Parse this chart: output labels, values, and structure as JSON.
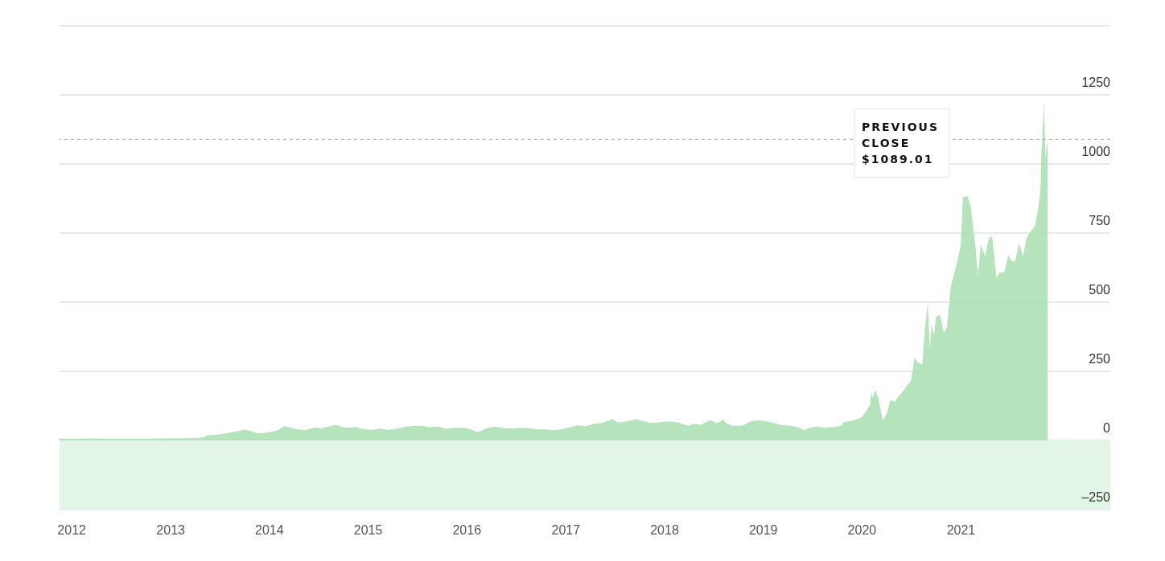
{
  "chart_data": {
    "type": "area",
    "x": [
      "2011-11-17",
      "2011-12-15",
      "2012-01-15",
      "2012-03-15",
      "2012-05-15",
      "2012-07-15",
      "2012-09-15",
      "2012-11-15",
      "2013-01-15",
      "2013-03-15",
      "2013-04-01",
      "2013-04-30",
      "2013-05-15",
      "2013-06-01",
      "2013-07-01",
      "2013-08-01",
      "2013-09-03",
      "2013-09-30",
      "2013-10-15",
      "2013-11-15",
      "2013-12-02",
      "2013-12-31",
      "2014-01-31",
      "2014-02-26",
      "2014-03-15",
      "2014-04-15",
      "2014-05-15",
      "2014-06-15",
      "2014-07-15",
      "2014-08-15",
      "2014-09-03",
      "2014-10-01",
      "2014-10-15",
      "2014-11-15",
      "2014-12-15",
      "2015-01-15",
      "2015-02-15",
      "2015-03-15",
      "2015-04-15",
      "2015-05-15",
      "2015-06-20",
      "2015-07-15",
      "2015-08-15",
      "2015-09-15",
      "2015-10-15",
      "2015-11-15",
      "2015-12-15",
      "2016-01-15",
      "2016-02-10",
      "2016-03-15",
      "2016-04-15",
      "2016-05-15",
      "2016-06-15",
      "2016-07-15",
      "2016-08-15",
      "2016-09-15",
      "2016-10-15",
      "2016-11-15",
      "2016-12-15",
      "2017-01-15",
      "2017-02-15",
      "2017-03-15",
      "2017-04-15",
      "2017-05-15",
      "2017-06-23",
      "2017-07-10",
      "2017-08-15",
      "2017-09-18",
      "2017-10-15",
      "2017-11-15",
      "2017-12-15",
      "2018-01-15",
      "2018-02-15",
      "2018-04-02",
      "2018-04-15",
      "2018-05-15",
      "2018-06-18",
      "2018-07-15",
      "2018-08-07",
      "2018-08-15",
      "2018-09-07",
      "2018-10-15",
      "2018-11-15",
      "2018-12-15",
      "2019-01-15",
      "2019-02-15",
      "2019-03-15",
      "2019-04-15",
      "2019-05-15",
      "2019-06-03",
      "2019-06-15",
      "2019-07-15",
      "2019-08-15",
      "2019-09-15",
      "2019-10-15",
      "2019-10-25",
      "2019-11-15",
      "2019-12-15",
      "2019-12-31",
      "2020-01-15",
      "2020-01-31",
      "2020-02-04",
      "2020-02-10",
      "2020-02-19",
      "2020-03-02",
      "2020-03-18",
      "2020-04-01",
      "2020-04-15",
      "2020-05-01",
      "2020-05-15",
      "2020-06-01",
      "2020-06-15",
      "2020-06-30",
      "2020-07-13",
      "2020-07-24",
      "2020-08-11",
      "2020-08-20",
      "2020-08-31",
      "2020-09-08",
      "2020-09-14",
      "2020-09-23",
      "2020-10-01",
      "2020-10-15",
      "2020-10-30",
      "2020-11-10",
      "2020-11-24",
      "2020-12-15",
      "2020-12-31",
      "2021-01-08",
      "2021-01-26",
      "2021-02-05",
      "2021-02-22",
      "2021-03-05",
      "2021-03-15",
      "2021-03-31",
      "2021-04-14",
      "2021-04-26",
      "2021-05-12",
      "2021-05-24",
      "2021-06-10",
      "2021-06-25",
      "2021-07-07",
      "2021-07-19",
      "2021-08-04",
      "2021-08-18",
      "2021-09-01",
      "2021-09-17",
      "2021-10-01",
      "2021-10-14",
      "2021-10-22",
      "2021-10-25",
      "2021-11-04",
      "2021-11-09",
      "2021-11-17"
    ],
    "values": [
      7,
      6,
      6,
      7,
      6,
      6,
      6,
      7,
      7,
      8,
      9,
      11,
      18,
      20,
      22,
      27,
      33,
      39,
      36,
      27,
      26,
      30,
      36,
      52,
      47,
      40,
      37,
      47,
      44,
      52,
      57,
      48,
      46,
      48,
      41,
      38,
      43,
      38,
      42,
      49,
      53,
      53,
      48,
      50,
      43,
      45,
      46,
      41,
      30,
      44,
      50,
      44,
      43,
      45,
      45,
      40,
      40,
      37,
      40,
      47,
      55,
      51,
      60,
      63,
      76,
      65,
      69,
      77,
      70,
      63,
      66,
      69,
      66,
      52,
      60,
      57,
      74,
      62,
      76,
      64,
      53,
      52,
      69,
      73,
      69,
      61,
      55,
      53,
      46,
      36,
      44,
      50,
      45,
      48,
      52,
      66,
      70,
      76,
      84,
      104,
      130,
      177,
      154,
      183,
      149,
      72,
      96,
      146,
      140,
      160,
      179,
      198,
      216,
      300,
      283,
      274,
      400,
      498,
      330,
      419,
      380,
      448,
      454,
      388,
      410,
      555,
      633,
      705,
      880,
      883,
      852,
      714,
      597,
      707,
      667,
      732,
      738,
      589,
      606,
      610,
      671,
      650,
      646,
      714,
      665,
      734,
      759,
      775,
      843,
      909,
      1024,
      1229,
      1023,
      1089.01
    ],
    "color": "#a8dfb0",
    "xlim": [
      "2011-11-17",
      "2022-07-07"
    ],
    "xticks": [
      "2012",
      "2013",
      "2014",
      "2015",
      "2016",
      "2017",
      "2018",
      "2019",
      "2020",
      "2021"
    ],
    "ylim": [
      -250,
      1500
    ],
    "yticks": [
      {
        "value": -250,
        "label": "–250"
      },
      0,
      250,
      500,
      750,
      1000,
      1250,
      {
        "value": 1500,
        "label": null
      }
    ],
    "grid": "y",
    "bands": [
      {
        "axis": "y",
        "from": -250,
        "to": 0,
        "color": "#e3f5e6"
      }
    ],
    "ref_lines": [
      {
        "axis": "y",
        "value": 1089.01,
        "label": "PREVIOUS CLOSE $1089.01",
        "color": "#aaaaaa",
        "line_style": "dashed"
      }
    ]
  }
}
